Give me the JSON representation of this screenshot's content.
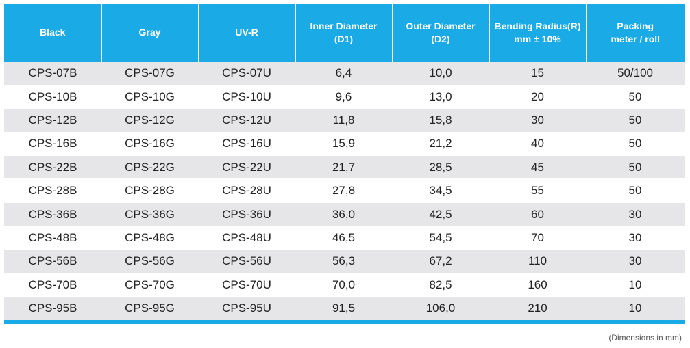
{
  "table": {
    "headers": [
      {
        "line1": "Black",
        "line2": ""
      },
      {
        "line1": "Gray",
        "line2": ""
      },
      {
        "line1": "UV-R",
        "line2": ""
      },
      {
        "line1": "Inner Diameter",
        "line2": "(D1)"
      },
      {
        "line1": "Outer Diameter",
        "line2": "(D2)"
      },
      {
        "line1": "Bending Radius(R)",
        "line2": "mm ± 10%"
      },
      {
        "line1": "Packing",
        "line2": "meter / roll"
      }
    ],
    "rows": [
      [
        "CPS-07B",
        "CPS-07G",
        "CPS-07U",
        "6,4",
        "10,0",
        "15",
        "50/100"
      ],
      [
        "CPS-10B",
        "CPS-10G",
        "CPS-10U",
        "9,6",
        "13,0",
        "20",
        "50"
      ],
      [
        "CPS-12B",
        "CPS-12G",
        "CPS-12U",
        "11,8",
        "15,8",
        "30",
        "50"
      ],
      [
        "CPS-16B",
        "CPS-16G",
        "CPS-16U",
        "15,9",
        "21,2",
        "40",
        "50"
      ],
      [
        "CPS-22B",
        "CPS-22G",
        "CPS-22U",
        "21,7",
        "28,5",
        "45",
        "50"
      ],
      [
        "CPS-28B",
        "CPS-28G",
        "CPS-28U",
        "27,8",
        "34,5",
        "55",
        "50"
      ],
      [
        "CPS-36B",
        "CPS-36G",
        "CPS-36U",
        "36,0",
        "42,5",
        "60",
        "30"
      ],
      [
        "CPS-48B",
        "CPS-48G",
        "CPS-48U",
        "46,5",
        "54,5",
        "70",
        "30"
      ],
      [
        "CPS-56B",
        "CPS-56G",
        "CPS-56U",
        "56,3",
        "67,2",
        "110",
        "30"
      ],
      [
        "CPS-70B",
        "CPS-70G",
        "CPS-70U",
        "70,0",
        "82,5",
        "160",
        "10"
      ],
      [
        "CPS-95B",
        "CPS-95G",
        "CPS-95U",
        "91,5",
        "106,0",
        "210",
        "10"
      ]
    ]
  },
  "footer": {
    "note": "(Dimensions in mm)"
  },
  "colors": {
    "header_bg": "#1aabe6",
    "header_text": "#ffffff",
    "row_alt_bg": "#e6e6e8",
    "row_bg": "#ffffff",
    "cell_text": "#222222"
  }
}
